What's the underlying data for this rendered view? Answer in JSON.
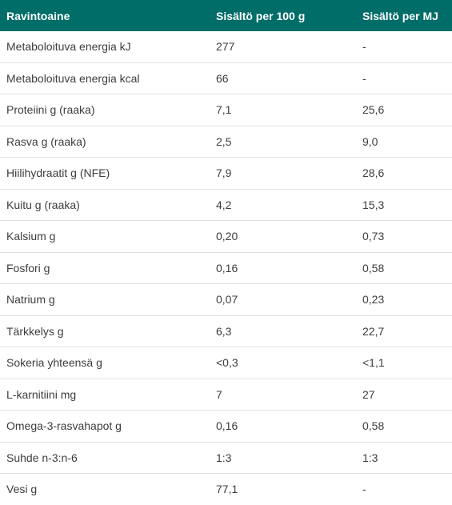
{
  "table": {
    "headers": [
      "Ravintoaine",
      "Sisältö per 100 g",
      "Sisältö per MJ"
    ],
    "rows": [
      [
        "Metaboloituva energia kJ",
        "277",
        "-"
      ],
      [
        "Metaboloituva energia kcal",
        "66",
        "-"
      ],
      [
        "Proteiini g (raaka)",
        "7,1",
        "25,6"
      ],
      [
        "Rasva g (raaka)",
        "2,5",
        "9,0"
      ],
      [
        "Hiilihydraatit g (NFE)",
        "7,9",
        "28,6"
      ],
      [
        "Kuitu g (raaka)",
        "4,2",
        "15,3"
      ],
      [
        "Kalsium g",
        "0,20",
        "0,73"
      ],
      [
        "Fosfori g",
        "0,16",
        "0,58"
      ],
      [
        "Natrium g",
        "0,07",
        "0,23"
      ],
      [
        "Tärkkelys g",
        "6,3",
        "22,7"
      ],
      [
        "Sokeria yhteensä g",
        "<0,3",
        "<1,1"
      ],
      [
        "L-karnitiini mg",
        "7",
        "27"
      ],
      [
        "Omega-3-rasvahapot g",
        "0,16",
        "0,58"
      ],
      [
        "Suhde n-3:n-6",
        "1:3",
        "1:3"
      ],
      [
        "Vesi g",
        "77,1",
        "-"
      ]
    ]
  },
  "colors": {
    "header_background": "#006d68",
    "header_text": "#ffffff",
    "body_text": "#3d3d3d",
    "row_divider": "#e2e2e2"
  }
}
